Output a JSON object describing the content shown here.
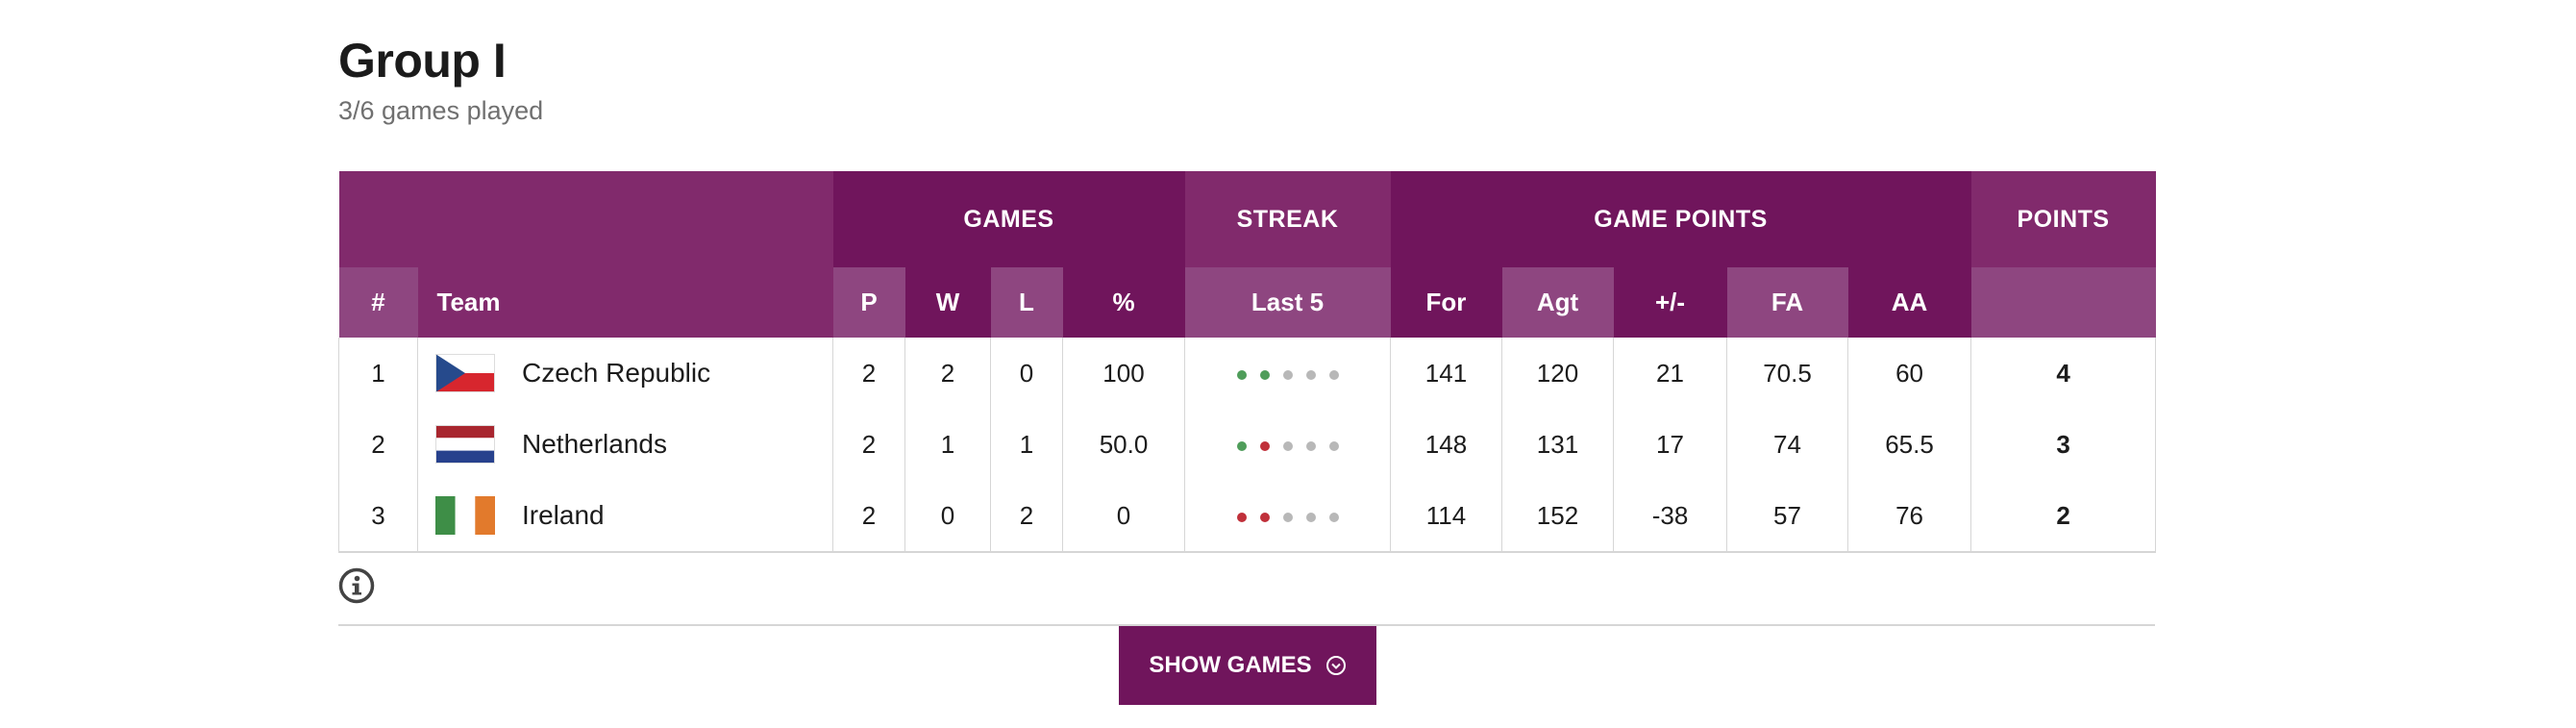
{
  "group": {
    "title": "Group I",
    "subtitle": "3/6 games played"
  },
  "headers": {
    "games": "GAMES",
    "streak": "STREAK",
    "game_points": "GAME POINTS",
    "points": "POINTS",
    "rank": "#",
    "team": "Team",
    "p": "P",
    "w": "W",
    "l": "L",
    "pct": "%",
    "last5": "Last 5",
    "for": "For",
    "agt": "Agt",
    "diff": "+/-",
    "fa": "FA",
    "aa": "AA"
  },
  "colors": {
    "header_mid": "#812a6c",
    "header_dark": "#70155c",
    "header_light": "#8e4680",
    "win": "#4f9d5a",
    "loss": "#c0303a",
    "none": "#b8b8b8"
  },
  "rows": [
    {
      "rank": "1",
      "team": "Czech Republic",
      "flag": "czech-flag",
      "p": "2",
      "w": "2",
      "l": "0",
      "pct": "100",
      "streak": [
        "W",
        "W",
        "-",
        "-",
        "-"
      ],
      "for": "141",
      "agt": "120",
      "diff": "21",
      "fa": "70.5",
      "aa": "60",
      "points": "4"
    },
    {
      "rank": "2",
      "team": "Netherlands",
      "flag": "netherlands-flag",
      "p": "2",
      "w": "1",
      "l": "1",
      "pct": "50.0",
      "streak": [
        "W",
        "L",
        "-",
        "-",
        "-"
      ],
      "for": "148",
      "agt": "131",
      "diff": "17",
      "fa": "74",
      "aa": "65.5",
      "points": "3"
    },
    {
      "rank": "3",
      "team": "Ireland",
      "flag": "ireland-flag",
      "p": "2",
      "w": "0",
      "l": "2",
      "pct": "0",
      "streak": [
        "L",
        "L",
        "-",
        "-",
        "-"
      ],
      "for": "114",
      "agt": "152",
      "diff": "-38",
      "fa": "57",
      "aa": "76",
      "points": "2"
    }
  ],
  "info_icon": "info-icon",
  "show_games": {
    "label": "SHOW GAMES",
    "icon": "chevron-down-circle-icon"
  }
}
